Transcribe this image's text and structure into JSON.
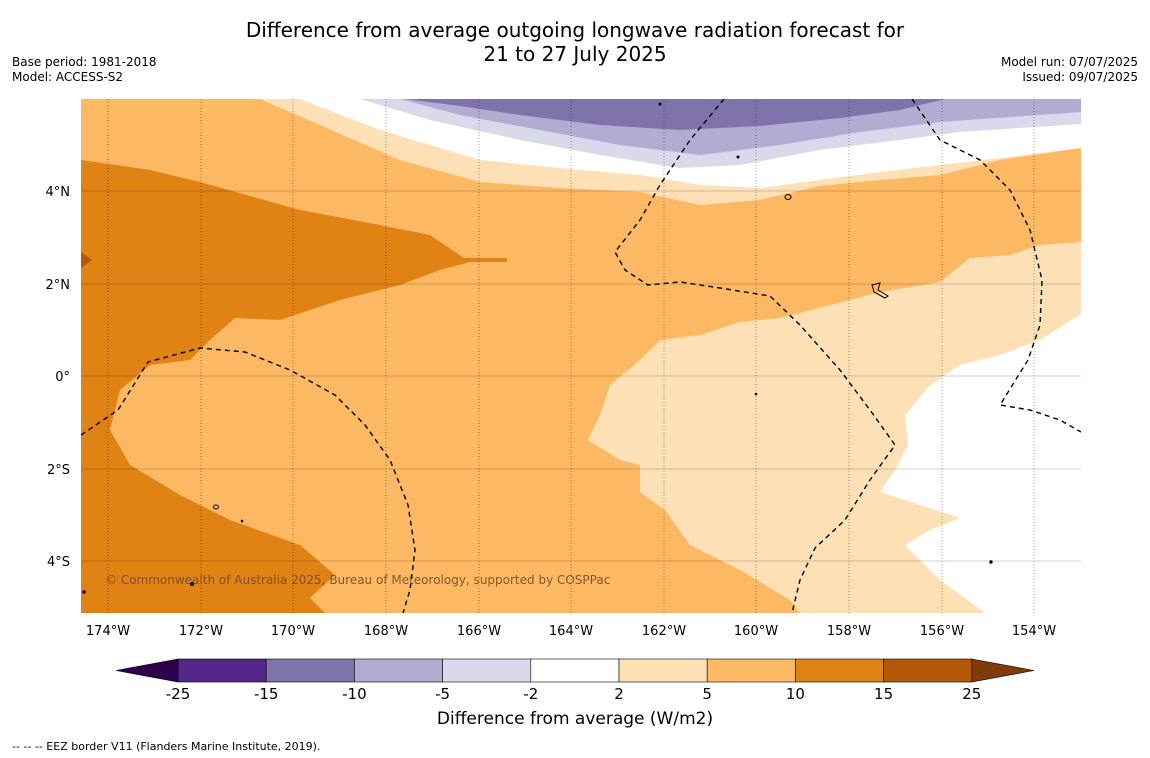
{
  "title_line1": "Difference from average outgoing longwave radiation forecast for",
  "title_line2": "21 to 27 July 2025",
  "base_period": "Base period: 1981-2018",
  "model": "Model: ACCESS-S2",
  "model_run": "Model run: 07/07/2025",
  "issued": "Issued: 09/07/2025",
  "copyright": "© Commonwealth of Australia 2025, Bureau of Meteorology, supported by COSPPac",
  "lat_labels": [
    "4°N",
    "2°N",
    "0°",
    "2°S",
    "4°S"
  ],
  "lon_labels": [
    "174°W",
    "172°W",
    "170°W",
    "168°W",
    "166°W",
    "164°W",
    "162°W",
    "160°W",
    "158°W",
    "156°W",
    "154°W"
  ],
  "colorbar": {
    "title": "Difference from average (W/m2)",
    "ticks": [
      "-25",
      "-15",
      "-10",
      "-5",
      "-2",
      "2",
      "5",
      "10",
      "15",
      "25"
    ],
    "colors": {
      "below_-25": "#2d004b",
      "-25_-15": "#542788",
      "-15_-10": "#8073ac",
      "-10_-5": "#b2abd2",
      "-5_-2": "#d8daeb",
      "-2_2": "#ffffff",
      "2_5": "#fee0b6",
      "5_10": "#fdb863",
      "10_15": "#e08214",
      "15_25": "#b35806",
      "above_25": "#7f3b08"
    }
  },
  "legend_note": "--  --  -- EEZ border V11 (Flanders Marine Institute, 2019)."
}
